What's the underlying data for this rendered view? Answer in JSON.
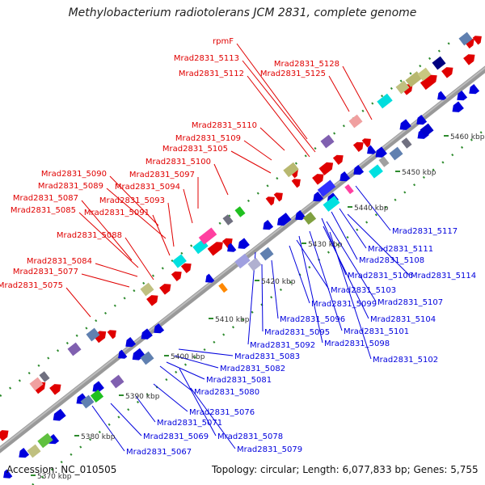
{
  "title": "Methylobacterium radiotolerans JCM 2831, complete genome",
  "footer": {
    "accession": "Accession: NC_010505",
    "summary": "Topology: circular; Length: 6,077,833 bp; Genes: 5,755"
  },
  "colors": {
    "forward": "#e00000",
    "reverse": "#0000dd",
    "backbone": "#999999",
    "tick": "#2e8b2e"
  },
  "scale_labels": [
    "5460 kbp",
    "5450 kbp",
    "5440 kbp",
    "5430 kbp",
    "5420 kbp",
    "5410 kbp",
    "5400 kbp",
    "5390 kbp",
    "5380 kbp",
    "5370 kbp"
  ],
  "forward_labels": [
    "rpmF",
    "Mrad2831_5113",
    "Mrad2831_5128",
    "Mrad2831_5112",
    "Mrad2831_5125",
    "Mrad2831_5110",
    "Mrad2831_5109",
    "Mrad2831_5105",
    "Mrad2831_5100",
    "Mrad2831_5090",
    "Mrad2831_5097",
    "Mrad2831_5089",
    "Mrad2831_5094",
    "Mrad2831_5087",
    "Mrad2831_5093",
    "Mrad2831_5085",
    "Mrad2831_5091",
    "Mrad2831_5088",
    "Mrad2831_5084",
    "Mrad2831_5077",
    "Mrad2831_5075"
  ],
  "reverse_labels": [
    "Mrad2831_5117",
    "Mrad2831_5111",
    "Mrad2831_5108",
    "Mrad2831_5106",
    "Mrad2831_5114",
    "Mrad2831_5103",
    "Mrad2831_5099",
    "Mrad2831_5107",
    "Mrad2831_5104",
    "Mrad2831_5096",
    "Mrad2831_5101",
    "Mrad2831_5095",
    "Mrad2831_5098",
    "Mrad2831_5092",
    "Mrad2831_5102",
    "Mrad2831_5083",
    "Mrad2831_5082",
    "Mrad2831_5081",
    "Mrad2831_5080",
    "Mrad2831_5076",
    "Mrad2831_5071",
    "Mrad2831_5069",
    "Mrad2831_5078",
    "Mrad2831_5079",
    "Mrad2831_5067"
  ]
}
